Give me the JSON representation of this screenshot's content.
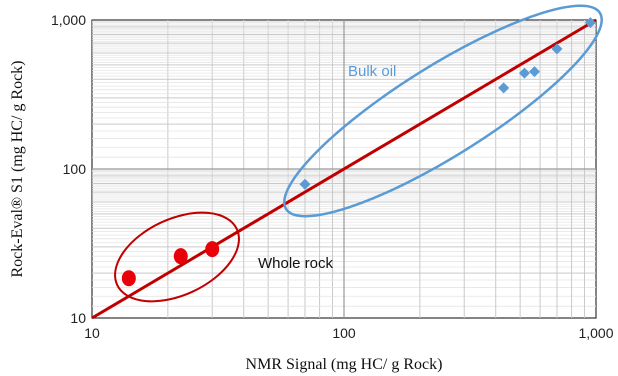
{
  "chart_data": {
    "type": "scatter",
    "xscale": "log",
    "yscale": "log",
    "xlim": [
      10,
      1000
    ],
    "ylim": [
      10,
      1000
    ],
    "xlabel": "NMR Signal (mg HC/ g Rock)",
    "ylabel": "Rock-Eval® S1 (mg HC/ g Rock)",
    "x_ticks": [
      "10",
      "100",
      "1,000"
    ],
    "y_ticks": [
      "10",
      "100",
      "1,000"
    ],
    "grid": true,
    "series": [
      {
        "name": "Whole rock",
        "color": "#e8000b",
        "marker": "circle",
        "points": [
          [
            14,
            18.5
          ],
          [
            22.5,
            26
          ],
          [
            30,
            29
          ]
        ]
      },
      {
        "name": "Bulk oil",
        "color": "#5b9bd5",
        "marker": "diamond",
        "points": [
          [
            70,
            79
          ],
          [
            430,
            350
          ],
          [
            520,
            440
          ],
          [
            570,
            450
          ],
          [
            700,
            640
          ],
          [
            950,
            960
          ]
        ]
      }
    ],
    "trendline": {
      "color": "#c00000",
      "from": [
        10,
        10
      ],
      "to": [
        1000,
        1000
      ]
    },
    "annotations": [
      {
        "text": "Bulk oil",
        "color": "#5b9bd5"
      },
      {
        "text": "Whole rock",
        "color": "#111111"
      }
    ]
  }
}
